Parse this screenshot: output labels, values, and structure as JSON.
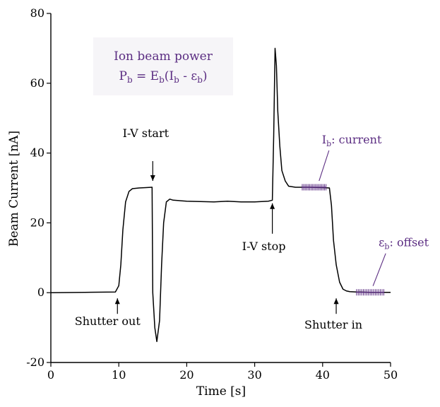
{
  "chart_data": {
    "type": "line",
    "xlabel": "Time [s]",
    "ylabel": "Beam Current [nA]",
    "xlim": [
      0,
      50
    ],
    "ylim": [
      -20,
      80
    ],
    "xticks": [
      "0",
      "10",
      "20",
      "30",
      "40",
      "50"
    ],
    "yticks": [
      "-20",
      "0",
      "20",
      "40",
      "60",
      "80"
    ],
    "grid": false,
    "series": [
      {
        "color": "#000000",
        "x": [
          0,
          5,
          9.5,
          10.0,
          10.3,
          10.6,
          11,
          11.5,
          12,
          13,
          14,
          14.9,
          15.0,
          15.3,
          15.6,
          16.0,
          16.3,
          16.6,
          17.0,
          17.5,
          18,
          20,
          22,
          24,
          26,
          28,
          30,
          32,
          32.6,
          32.8,
          33.0,
          33.2,
          33.4,
          33.7,
          34.0,
          34.5,
          35.0,
          36,
          38,
          40,
          41.0,
          41.3,
          41.6,
          42,
          42.5,
          43,
          43.5,
          44,
          45,
          47,
          50
        ],
        "y": [
          0,
          0.1,
          0.2,
          2,
          8,
          18,
          26,
          29,
          29.8,
          30,
          30.1,
          30.2,
          0,
          -10,
          -14,
          -8,
          8,
          20,
          26,
          26.8,
          26.5,
          26.2,
          26.1,
          26,
          26.2,
          26,
          26,
          26.2,
          26.5,
          45,
          70,
          65,
          52,
          42,
          35,
          32,
          30.5,
          30.2,
          30.2,
          30.1,
          30,
          25,
          15,
          8,
          3,
          1,
          0.5,
          0.3,
          0.2,
          0.1,
          0.1
        ]
      }
    ],
    "annotations": [
      {
        "text": "Shutter out",
        "x": 9.8,
        "y": 0
      },
      {
        "text": "I-V start",
        "x": 15,
        "y": 30
      },
      {
        "text": "I-V stop",
        "x": 32.6,
        "y": 26
      },
      {
        "text": "Shutter in",
        "x": 42,
        "y": 0
      }
    ],
    "markers": [
      {
        "label_main": "I",
        "label_sub": "b",
        "label_rest": ": current",
        "x_range": [
          37,
          40.5
        ],
        "y": 30.2,
        "color": "#5b2d82"
      },
      {
        "label_main": "ε",
        "label_sub": "b",
        "label_rest": ": offset",
        "x_range": [
          45,
          49
        ],
        "y": 0.1,
        "color": "#5b2d82"
      }
    ],
    "infobox": {
      "line1": "Ion beam power",
      "eq_P": "P",
      "eq_b1": "b",
      "eq_mid": " = E",
      "eq_b2": "b",
      "eq_open": "(I",
      "eq_b3": "b",
      "eq_minus": " - ε",
      "eq_b4": "b",
      "eq_close": ")",
      "background": "#f6f5f8",
      "color": "#5b2d82"
    }
  }
}
